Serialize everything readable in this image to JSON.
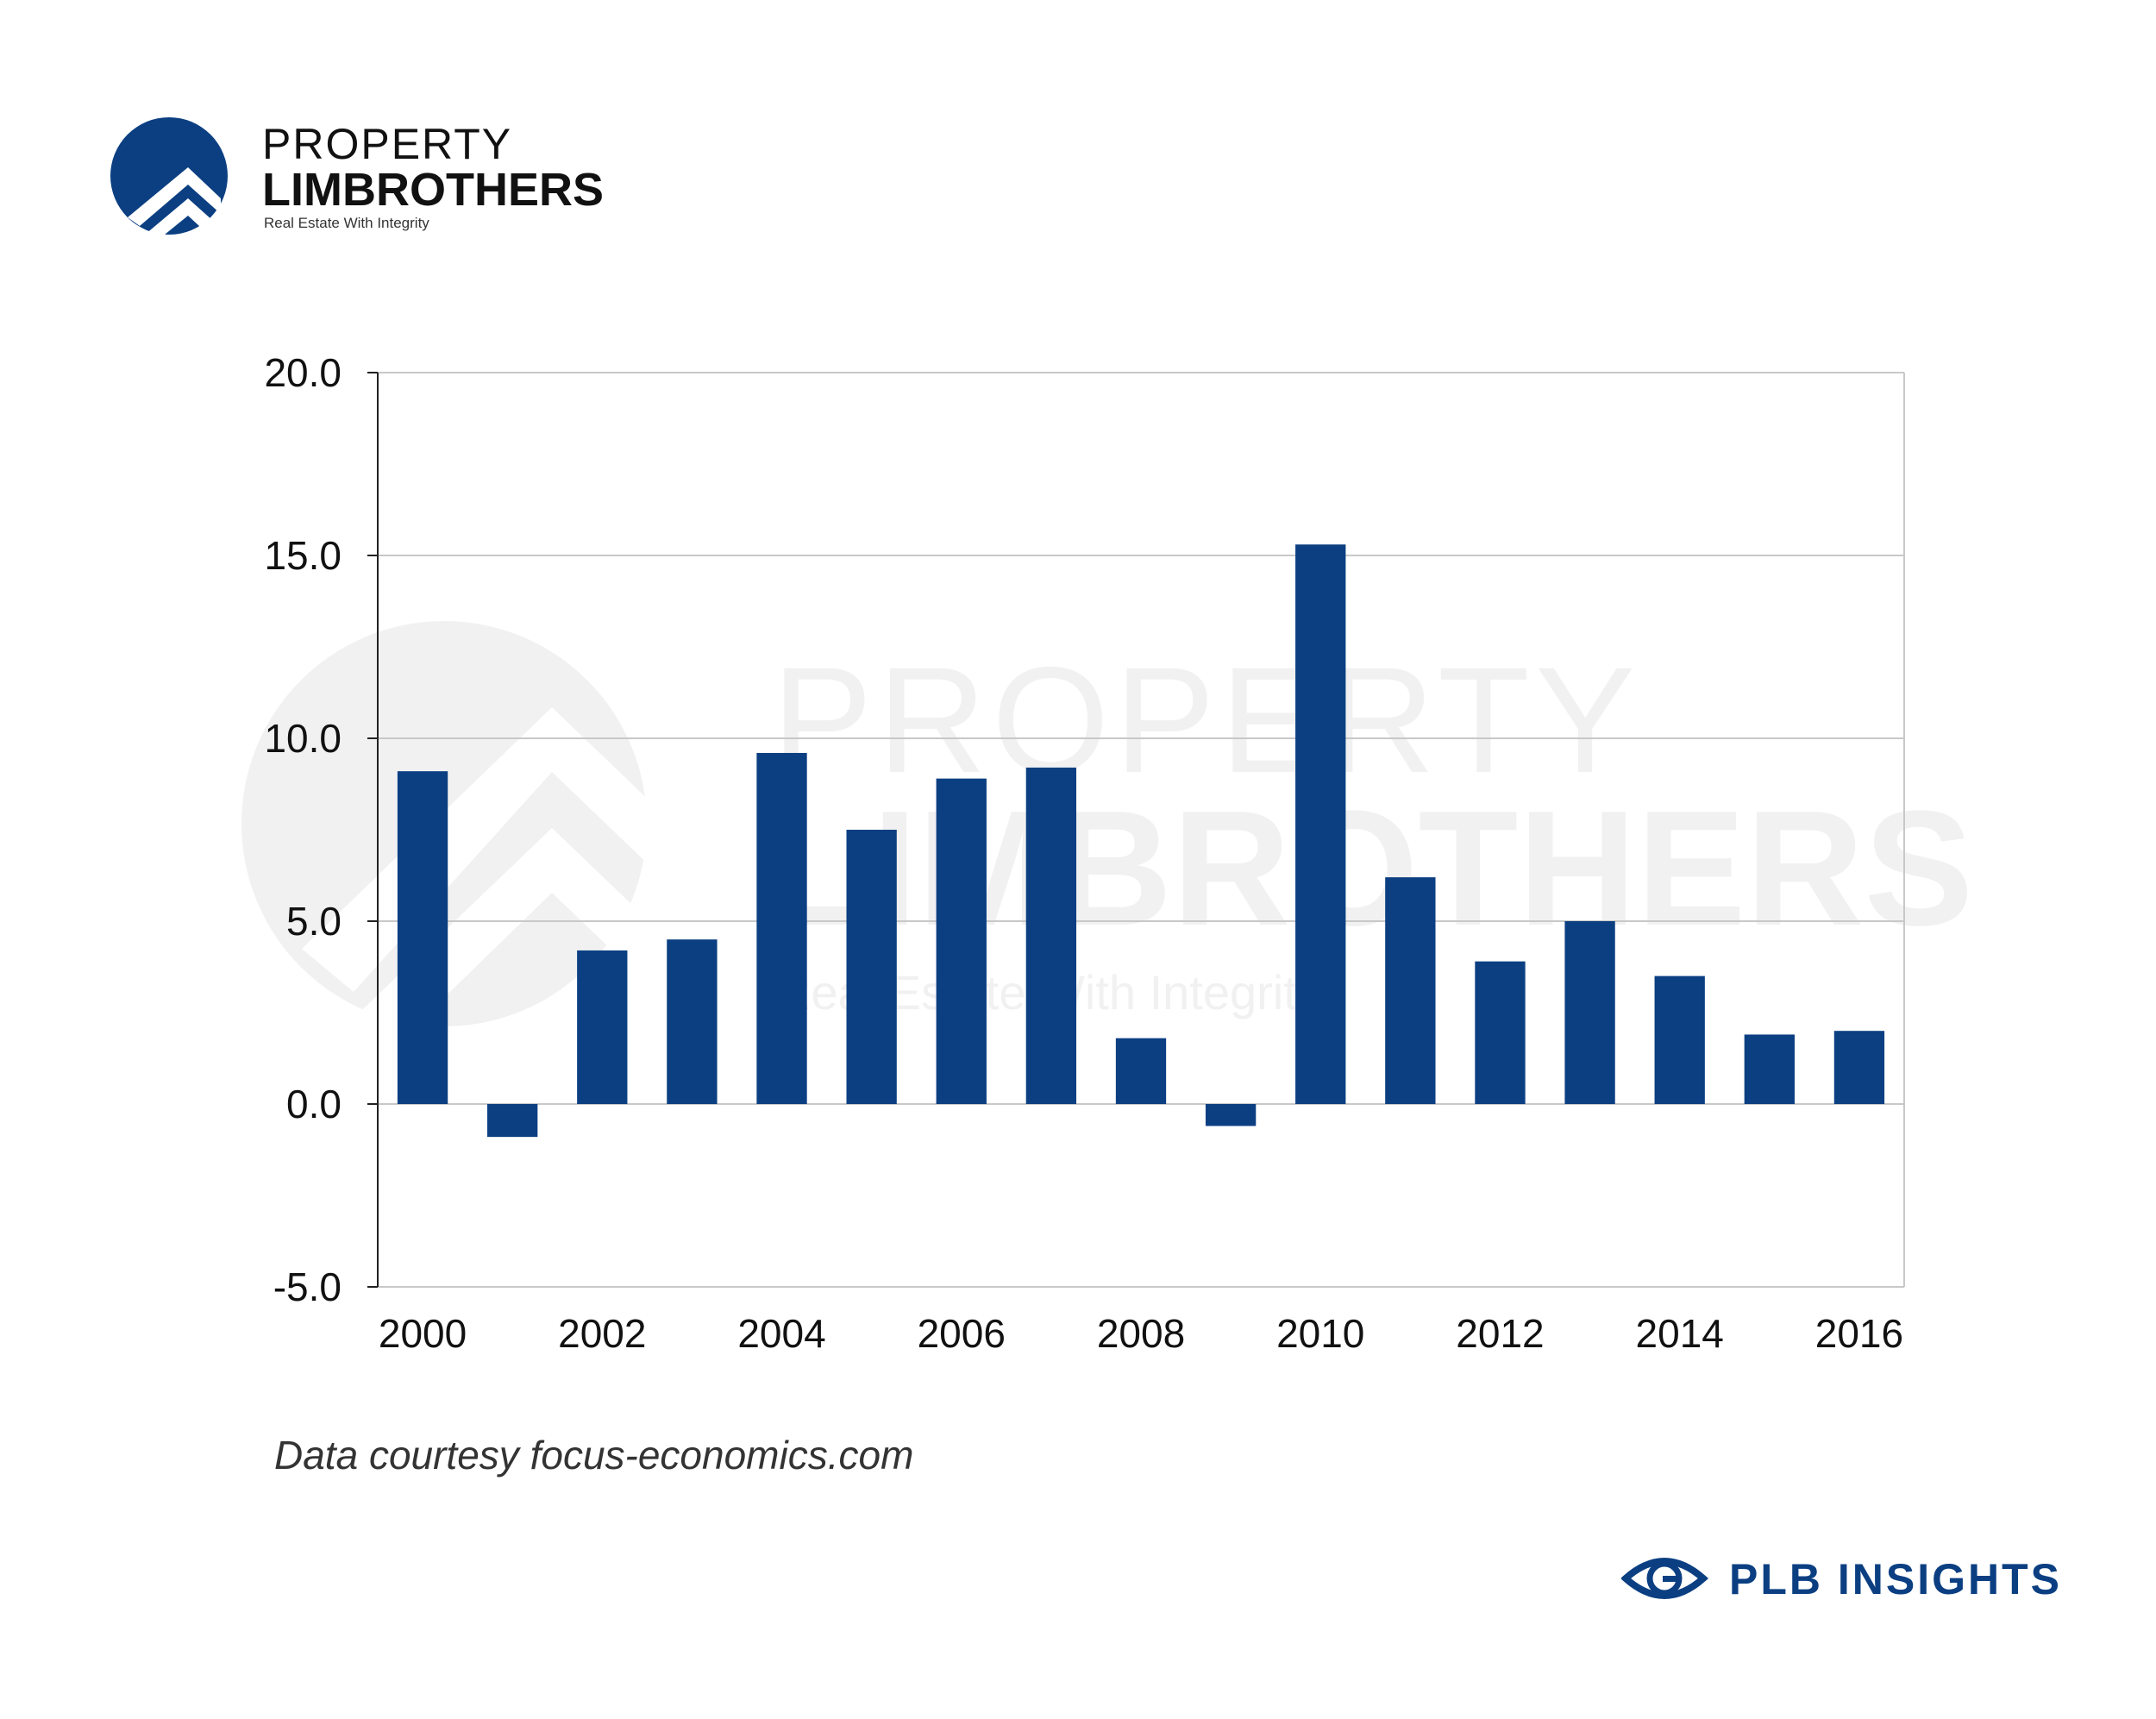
{
  "brand": {
    "line1": "PROPERTY",
    "line2": "LIMBROTHERS",
    "tagline": "Real Estate With Integrity",
    "color": "#0b3f82"
  },
  "watermark": {
    "line1": "PROPERTY",
    "line2": "LIMBROTHERS",
    "tagline": "Real Estate With Integrity"
  },
  "source_note": "Data courtesy focus-economics.com",
  "footer_brand": {
    "label": "PLB INSIGHTS",
    "icon": "eye-icon"
  },
  "chart_data": {
    "type": "bar",
    "title": "",
    "xlabel": "",
    "ylabel": "",
    "categories": [
      "2000",
      "2001",
      "2002",
      "2003",
      "2004",
      "2005",
      "2006",
      "2007",
      "2008",
      "2009",
      "2010",
      "2011",
      "2012",
      "2013",
      "2014",
      "2015",
      "2016"
    ],
    "values": [
      9.1,
      -0.9,
      4.2,
      4.5,
      9.6,
      7.5,
      8.9,
      9.2,
      1.8,
      -0.6,
      15.3,
      6.2,
      3.9,
      5.0,
      3.5,
      1.9,
      2.0
    ],
    "x_tick_labels": [
      "2000",
      "2002",
      "2004",
      "2006",
      "2008",
      "2010",
      "2012",
      "2014",
      "2016"
    ],
    "y_ticks": [
      "-5.0",
      "0.0",
      "5.0",
      "10.0",
      "15.0",
      "20.0"
    ],
    "ylim": [
      -5,
      20
    ],
    "grid": true,
    "legend": "none",
    "bar_color": "#0b3f82"
  }
}
